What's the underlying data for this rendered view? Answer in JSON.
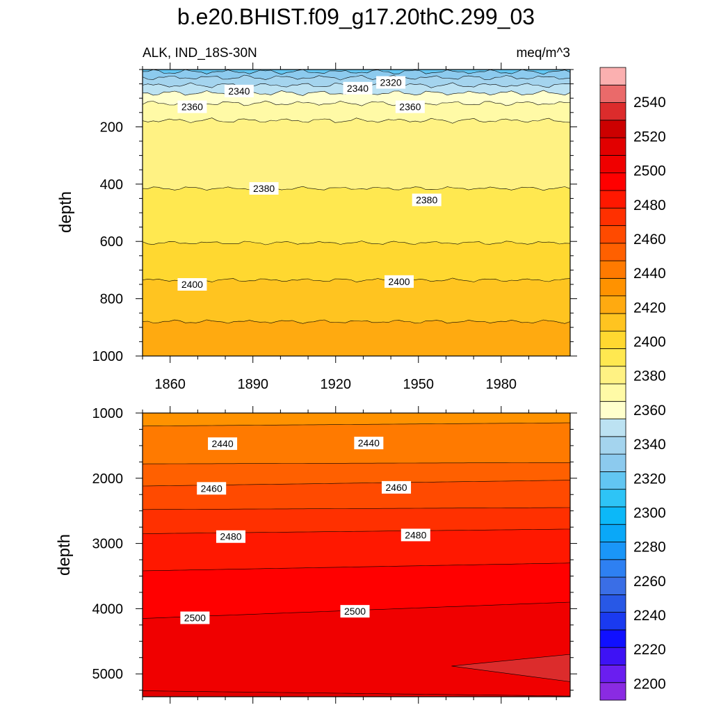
{
  "chart_data": {
    "type": "contour",
    "title": "b.e20.BHIST.f09_g17.20thC.299_03",
    "subtitle_left": "ALK, IND_18S-30N",
    "subtitle_right": "meq/m^3",
    "xlabel": "",
    "ylabel": "depth",
    "xlim": [
      1850,
      2005
    ],
    "x_ticks": [
      "1860",
      "1890",
      "1920",
      "1950",
      "1980"
    ],
    "x_tick_values": [
      1860,
      1890,
      1920,
      1950,
      1980
    ],
    "panels": [
      {
        "name": "upper",
        "ylim": [
          0,
          1000
        ],
        "y_ticks": [
          "200",
          "400",
          "600",
          "800",
          "1000"
        ],
        "y_tick_values": [
          200,
          400,
          600,
          800,
          1000
        ],
        "contour_labels": [
          {
            "text": "2320",
            "x": 1940,
            "y": 45
          },
          {
            "text": "2340",
            "x": 1928,
            "y": 65
          },
          {
            "text": "2340",
            "x": 1885,
            "y": 75
          },
          {
            "text": "2360",
            "x": 1868,
            "y": 130
          },
          {
            "text": "2360",
            "x": 1947,
            "y": 130
          },
          {
            "text": "2380",
            "x": 1894,
            "y": 415
          },
          {
            "text": "2380",
            "x": 1953,
            "y": 455
          },
          {
            "text": "2400",
            "x": 1868,
            "y": 750
          },
          {
            "text": "2400",
            "x": 1943,
            "y": 740
          }
        ]
      },
      {
        "name": "lower",
        "ylim": [
          1000,
          5350
        ],
        "y_ticks": [
          "1000",
          "2000",
          "3000",
          "4000",
          "5000"
        ],
        "y_tick_values": [
          1000,
          2000,
          3000,
          4000,
          5000
        ],
        "contour_labels": [
          {
            "text": "2440",
            "x": 1879,
            "y": 1470
          },
          {
            "text": "2440",
            "x": 1932,
            "y": 1460
          },
          {
            "text": "2460",
            "x": 1875,
            "y": 2155
          },
          {
            "text": "2460",
            "x": 1942,
            "y": 2140
          },
          {
            "text": "2480",
            "x": 1882,
            "y": 2895
          },
          {
            "text": "2480",
            "x": 1949,
            "y": 2870
          },
          {
            "text": "2500",
            "x": 1869,
            "y": 4140
          },
          {
            "text": "2500",
            "x": 1927,
            "y": 4040
          }
        ]
      }
    ],
    "colorbar": {
      "levels_from": 2190,
      "levels_to": 2560,
      "step": 10,
      "labels": [
        "2200",
        "2220",
        "2240",
        "2260",
        "2280",
        "2300",
        "2320",
        "2340",
        "2360",
        "2380",
        "2400",
        "2420",
        "2440",
        "2460",
        "2480",
        "2500",
        "2520",
        "2540"
      ],
      "label_values": [
        2200,
        2220,
        2240,
        2260,
        2280,
        2300,
        2320,
        2340,
        2360,
        2380,
        2400,
        2420,
        2440,
        2460,
        2480,
        2500,
        2520,
        2540
      ],
      "colors": [
        "#8a2be2",
        "#6a1ef0",
        "#3e12f5",
        "#1010ff",
        "#1a3af0",
        "#2858e6",
        "#3a6ee6",
        "#2e80f2",
        "#1a96f8",
        "#0aa8f8",
        "#0cb8f8",
        "#2ec4f6",
        "#62c6f2",
        "#8ccaee",
        "#a4d4ee",
        "#bce2f2",
        "#ffffcc",
        "#fffaa6",
        "#fff283",
        "#ffe850",
        "#ffd830",
        "#ffc420",
        "#ffaa10",
        "#ff9200",
        "#ff7a00",
        "#ff6000",
        "#ff4a00",
        "#ff3000",
        "#ff1800",
        "#ff0000",
        "#f00000",
        "#e20000",
        "#cc0000",
        "#dc2c2c",
        "#ea6a6a",
        "#fbb0b0"
      ]
    }
  }
}
